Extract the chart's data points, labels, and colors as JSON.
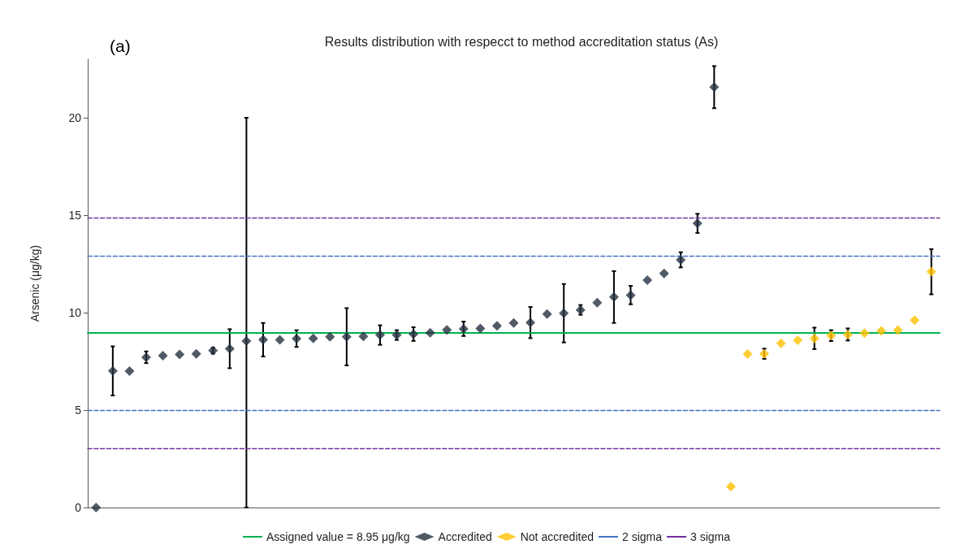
{
  "chart_data": {
    "type": "scatter",
    "title": "Results distribution with respecct to method accreditation status (As)",
    "ylabel": "Arsenic (μg/kg)",
    "annotations": [
      "(a)"
    ],
    "categories": [
      null,
      null,
      null,
      null,
      null,
      null,
      null,
      null,
      null,
      null,
      null,
      null,
      null,
      null,
      null,
      null,
      null,
      null,
      null,
      null,
      null,
      null,
      null,
      null,
      null,
      null,
      null,
      null,
      null,
      null,
      null,
      null,
      null,
      null,
      null,
      null,
      null,
      null,
      null,
      null,
      null,
      null,
      null,
      null,
      null,
      null,
      null,
      null,
      null,
      null,
      null
    ],
    "series": [
      {
        "name": "Accredited",
        "color": "#243040",
        "values": [
          0,
          7.01,
          7.0,
          7.71,
          7.79,
          7.85,
          7.89,
          8.05,
          8.15,
          8.54,
          8.61,
          8.6,
          8.67,
          8.68,
          8.76,
          8.76,
          8.78,
          8.85,
          8.85,
          8.9,
          8.97,
          9.11,
          9.17,
          9.19,
          9.32,
          9.47,
          9.49,
          9.93,
          9.97,
          10.14,
          10.51,
          10.8,
          10.9,
          11.67,
          12.01,
          12.71,
          14.58,
          21.57,
          null,
          null,
          null,
          null,
          null,
          null,
          null,
          null,
          null,
          null,
          null,
          null,
          null
        ],
        "errors": [
          null,
          1.26,
          null,
          0.3,
          null,
          null,
          null,
          0.15,
          1.0,
          [
            0,
            20.0
          ],
          0.86,
          null,
          0.43,
          null,
          null,
          1.47,
          null,
          0.5,
          0.25,
          0.35,
          null,
          null,
          0.37,
          null,
          null,
          null,
          0.8,
          null,
          1.5,
          0.25,
          null,
          1.33,
          0.47,
          null,
          null,
          0.39,
          0.49,
          1.08,
          null,
          null,
          null,
          null,
          null,
          null,
          null,
          null,
          null,
          null,
          null,
          null,
          null
        ]
      },
      {
        "name": "Not accredited",
        "color": "#ffc000",
        "values": [
          null,
          null,
          null,
          null,
          null,
          null,
          null,
          null,
          null,
          null,
          null,
          null,
          null,
          null,
          null,
          null,
          null,
          null,
          null,
          null,
          null,
          null,
          null,
          null,
          null,
          null,
          null,
          null,
          null,
          null,
          null,
          null,
          null,
          null,
          null,
          null,
          null,
          null,
          1.07,
          7.88,
          7.89,
          8.43,
          8.58,
          8.68,
          8.82,
          8.88,
          8.95,
          9.06,
          9.1,
          9.61,
          12.1
        ],
        "errors": [
          null,
          null,
          null,
          null,
          null,
          null,
          null,
          null,
          null,
          null,
          null,
          null,
          null,
          null,
          null,
          null,
          null,
          null,
          null,
          null,
          null,
          null,
          null,
          null,
          null,
          null,
          null,
          null,
          null,
          null,
          null,
          null,
          null,
          null,
          null,
          null,
          null,
          null,
          null,
          null,
          0.26,
          null,
          null,
          0.55,
          0.28,
          0.31,
          null,
          null,
          null,
          null,
          1.16
        ]
      }
    ],
    "ref_lines": [
      {
        "axis": "y",
        "value": 8.95,
        "label": "Assigned value = 8.95 μg/kg",
        "color": "#00b050",
        "line_style": "solid"
      },
      {
        "axis": "y",
        "value": 12.9,
        "label": "2 sigma",
        "color": "#4472c4",
        "line_style": "dashed"
      },
      {
        "axis": "y",
        "value": 5.0,
        "label": null,
        "color": "#4472c4",
        "line_style": "dashed"
      },
      {
        "axis": "y",
        "value": 14.88,
        "label": "3 sigma",
        "color": "#7030a0",
        "line_style": "dashed"
      },
      {
        "axis": "y",
        "value": 3.03,
        "label": null,
        "color": "#7030a0",
        "line_style": "dashed"
      }
    ],
    "ylim": [
      0,
      23
    ],
    "yticks": [
      0,
      5,
      10,
      15,
      20
    ],
    "grid": false,
    "legend": "bottom",
    "marker": "diamond",
    "tick_labels": "y"
  }
}
